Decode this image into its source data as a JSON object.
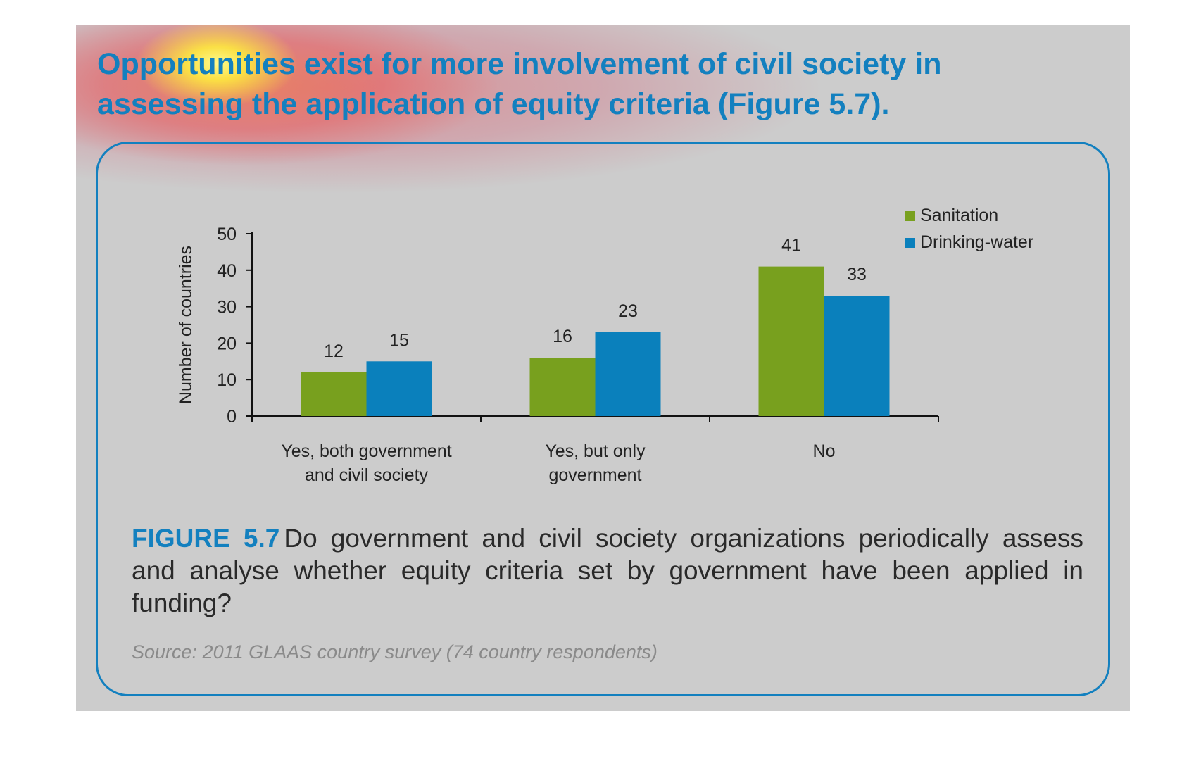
{
  "headline": {
    "line1": "Opportunities exist for more involvement of civil society in",
    "line2": "assessing the application of equity criteria (Figure 5.7)."
  },
  "colors": {
    "accent": "#1380bf",
    "sanitation": "#78a01e",
    "drinking_water": "#0a80bc",
    "background": "#cccccc"
  },
  "chart_data": {
    "type": "bar",
    "title": "",
    "ylabel": "Number of countries",
    "xlabel": "",
    "ylim": [
      0,
      50
    ],
    "yticks": [
      0,
      10,
      20,
      30,
      40,
      50
    ],
    "categories": [
      [
        "Yes, both government",
        "and civil society"
      ],
      [
        "Yes, but only",
        "government"
      ],
      [
        "No"
      ]
    ],
    "series": [
      {
        "name": "Sanitation",
        "color": "#78a01e",
        "values": [
          12,
          16,
          41
        ]
      },
      {
        "name": "Drinking-water",
        "color": "#0a80bc",
        "values": [
          15,
          23,
          33
        ]
      }
    ],
    "legend_position": "top-right",
    "grid": false
  },
  "caption": {
    "label": "FIGURE 5.7",
    "text": "Do government and civil society organizations periodically assess and analyse whether equity criteria set by government have been applied in funding?"
  },
  "source": "Source: 2011 GLAAS country survey (74 country respondents)"
}
